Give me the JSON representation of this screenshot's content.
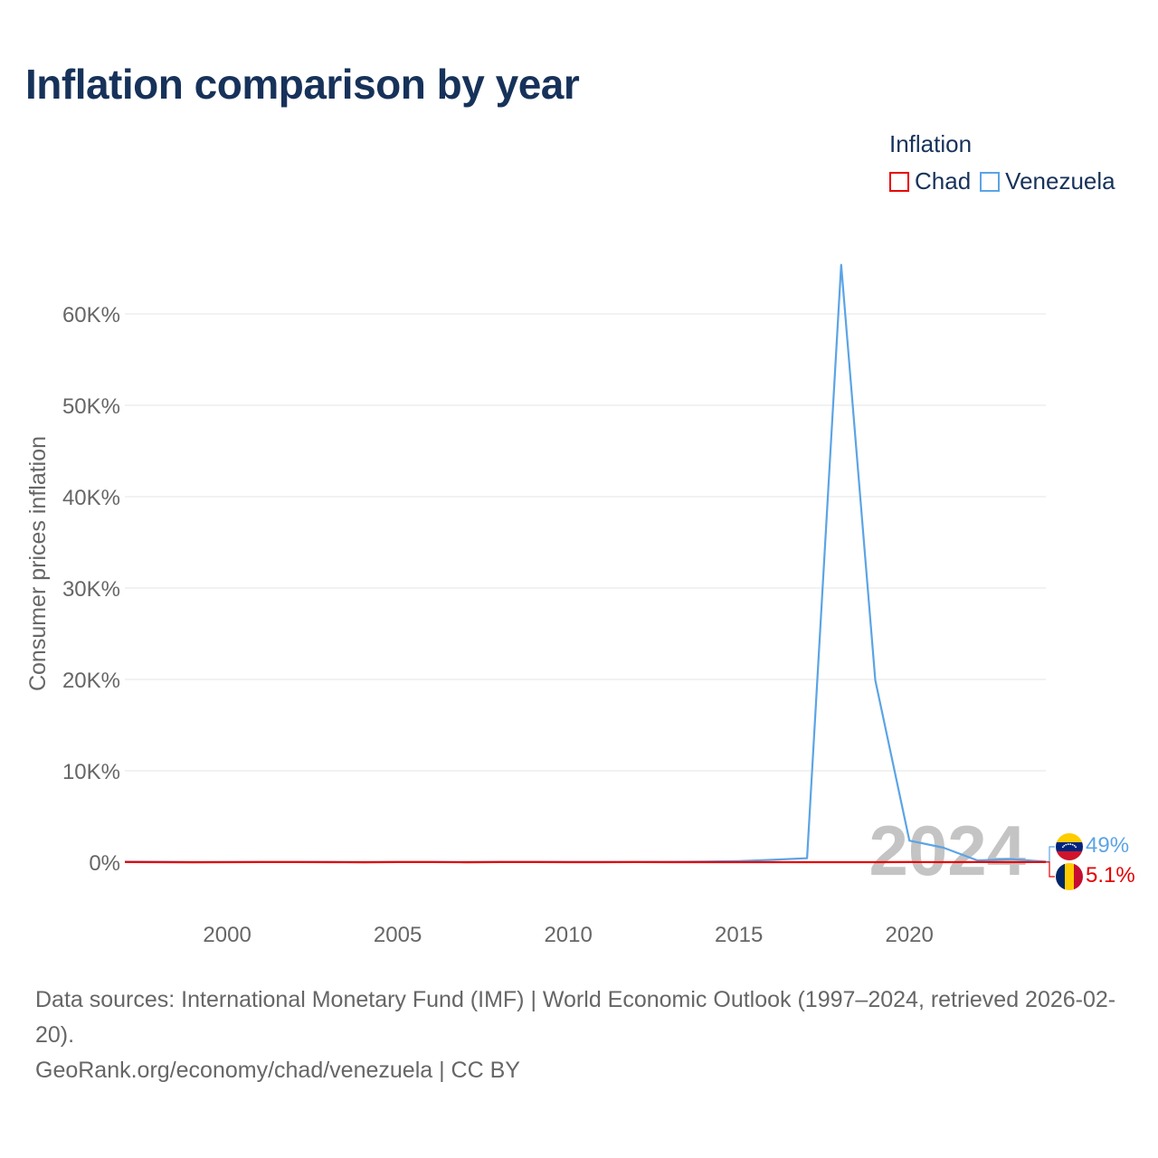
{
  "title": "Inflation comparison by year",
  "legend": {
    "title": "Inflation",
    "items": [
      {
        "label": "Chad",
        "color": "#e60000"
      },
      {
        "label": "Venezuela",
        "color": "#5ba4e5"
      }
    ]
  },
  "chart_data": {
    "type": "line",
    "ylabel": "Consumer prices inflation",
    "xlabel": "",
    "xlim": [
      1997,
      2024
    ],
    "ylim": [
      0,
      65000
    ],
    "x_ticks": [
      2000,
      2005,
      2010,
      2015,
      2020
    ],
    "y_ticks": [
      {
        "value": 0,
        "label": "0%"
      },
      {
        "value": 10000,
        "label": "10K%"
      },
      {
        "value": 20000,
        "label": "20K%"
      },
      {
        "value": 30000,
        "label": "30K%"
      },
      {
        "value": 40000,
        "label": "40K%"
      },
      {
        "value": 50000,
        "label": "50K%"
      },
      {
        "value": 60000,
        "label": "60K%"
      }
    ],
    "year_watermark": "2024",
    "x": [
      1997,
      1998,
      1999,
      2000,
      2001,
      2002,
      2003,
      2004,
      2005,
      2006,
      2007,
      2008,
      2009,
      2010,
      2011,
      2012,
      2013,
      2014,
      2015,
      2016,
      2017,
      2018,
      2019,
      2020,
      2021,
      2022,
      2023,
      2024
    ],
    "series": [
      {
        "name": "Venezuela",
        "color": "#5ba4e5",
        "values": [
          50,
          36,
          24,
          16,
          13,
          22,
          31,
          22,
          16,
          14,
          19,
          31,
          27,
          28,
          26,
          21,
          41,
          62,
          122,
          255,
          438,
          65374,
          19906,
          2355,
          1589,
          186,
          337,
          49
        ],
        "end_label": "49%"
      },
      {
        "name": "Chad",
        "color": "#e60000",
        "values": [
          6,
          4,
          -8,
          4,
          12,
          5,
          -2,
          -5,
          8,
          8,
          -9,
          10,
          10,
          -2,
          2,
          10,
          0,
          2,
          4,
          -1,
          -1,
          4,
          -1,
          5,
          -1,
          6,
          4,
          5.1
        ],
        "end_label": "5.1%"
      }
    ]
  },
  "footer": {
    "sources": "Data sources: International Monetary Fund (IMF) | World Economic Outlook (1997–2024, retrieved 2026-02-20).",
    "credit": "GeoRank.org/economy/chad/venezuela | CC BY"
  }
}
